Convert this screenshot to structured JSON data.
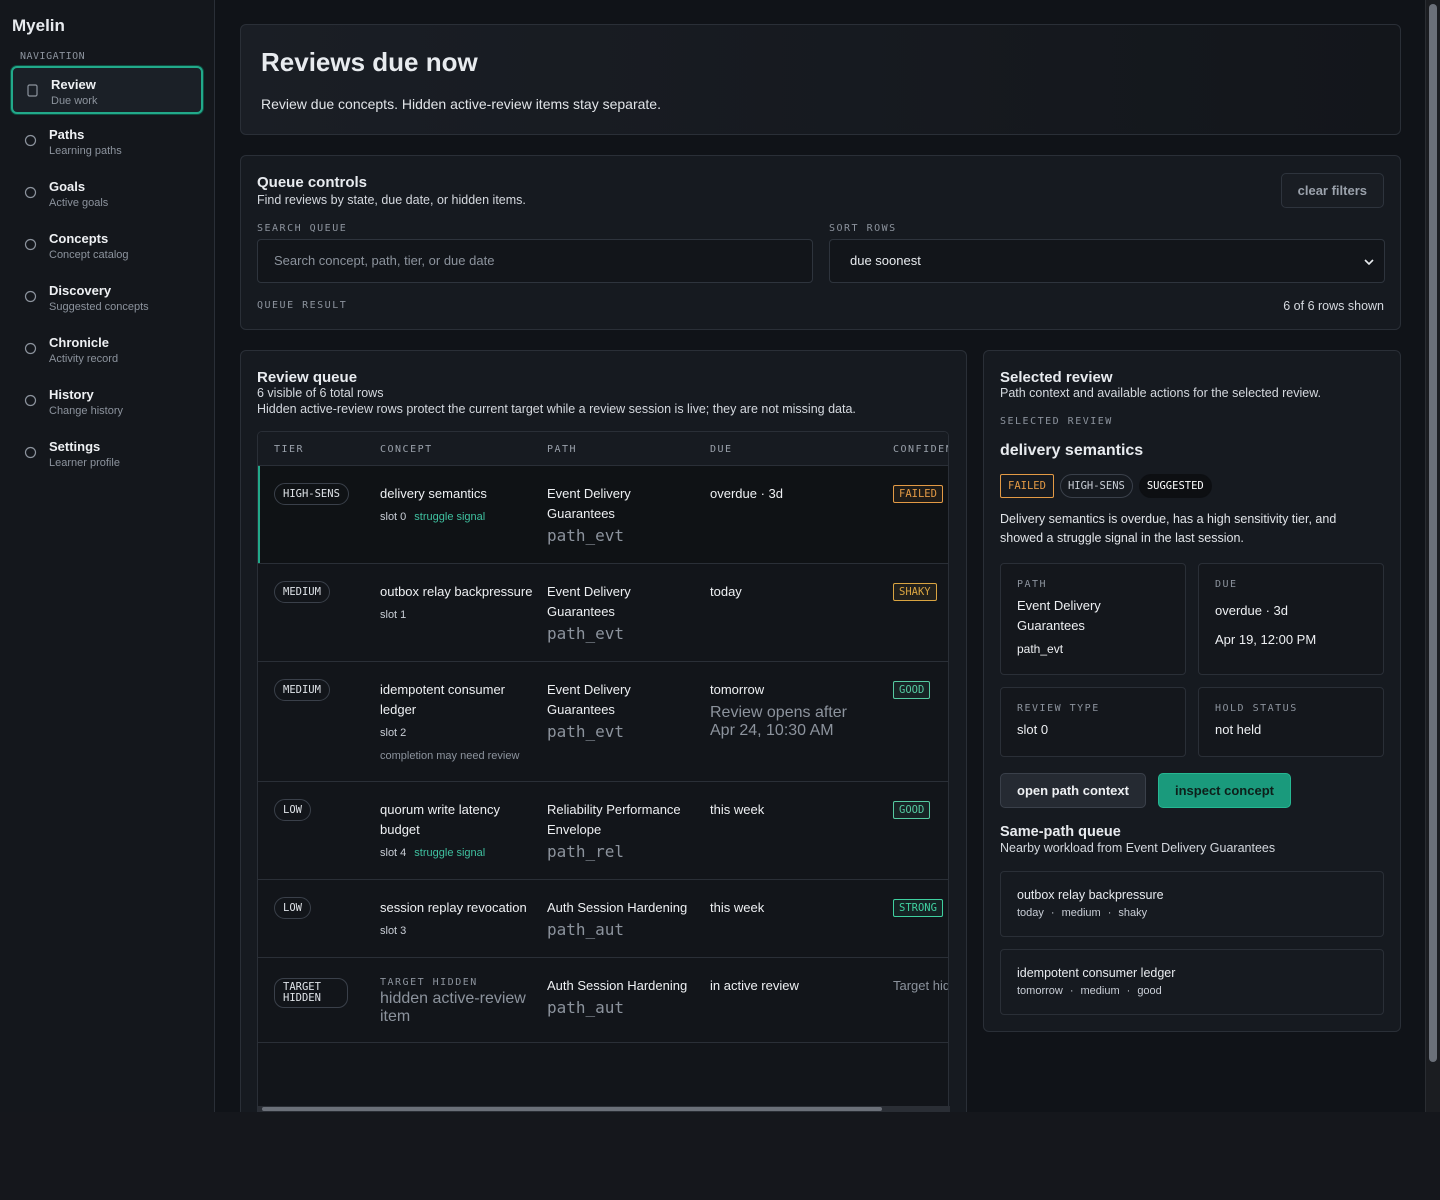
{
  "app": {
    "name": "Myelin"
  },
  "nav": {
    "heading": "NAVIGATION",
    "items": [
      {
        "label": "Review",
        "sub": "Due work"
      },
      {
        "label": "Paths",
        "sub": "Learning paths"
      },
      {
        "label": "Goals",
        "sub": "Active goals"
      },
      {
        "label": "Concepts",
        "sub": "Concept catalog"
      },
      {
        "label": "Discovery",
        "sub": "Suggested concepts"
      },
      {
        "label": "Chronicle",
        "sub": "Activity record"
      },
      {
        "label": "History",
        "sub": "Change history"
      },
      {
        "label": "Settings",
        "sub": "Learner profile"
      }
    ]
  },
  "header": {
    "title": "Reviews due now",
    "description": "Review due concepts. Hidden active-review items stay separate."
  },
  "controls": {
    "title": "Queue controls",
    "description": "Find reviews by state, due date, or hidden items.",
    "clear": "clear filters",
    "search_label": "SEARCH QUEUE",
    "search_placeholder": "Search concept, path, tier, or due date",
    "sort_label": "SORT ROWS",
    "sort_value": "due soonest",
    "result_label": "QUEUE RESULT",
    "result_text": "6 of 6 rows shown"
  },
  "queue": {
    "title": "Review queue",
    "count": "6 visible of 6 total rows",
    "note": "Hidden active-review rows protect the current target while a review session is live; they are not missing data.",
    "columns": [
      "TIER",
      "CONCEPT",
      "PATH",
      "DUE",
      "CONFIDENCE"
    ],
    "rows": [
      {
        "tier": "HIGH-SENS",
        "concept": "delivery semantics",
        "slot": "slot 0",
        "signal": "struggle signal",
        "path": "Event Delivery Guarantees",
        "path_id": "path_evt",
        "due": "overdue · 3d",
        "confidence": "FAILED",
        "confidence_color": "#e39a45"
      },
      {
        "tier": "MEDIUM",
        "concept": "outbox relay backpressure",
        "slot": "slot 1",
        "path": "Event Delivery Guarantees",
        "path_id": "path_evt",
        "due": "today",
        "confidence": "SHAKY",
        "confidence_color": "#d9a441"
      },
      {
        "tier": "MEDIUM",
        "concept": "idempotent consumer ledger",
        "slot": "slot 2",
        "note": "completion may need review",
        "path": "Event Delivery Guarantees",
        "path_id": "path_evt",
        "due": "tomorrow",
        "due_note": "Review opens after Apr 24, 10:30 AM",
        "confidence": "GOOD",
        "confidence_color": "#55c9a0"
      },
      {
        "tier": "LOW",
        "concept": "quorum write latency budget",
        "slot": "slot 4",
        "signal": "struggle signal",
        "path": "Reliability Performance Envelope",
        "path_id": "path_rel",
        "due": "this week",
        "confidence": "GOOD",
        "confidence_color": "#55c9a0"
      },
      {
        "tier": "LOW",
        "concept": "session replay revocation",
        "slot": "slot 3",
        "path": "Auth Session Hardening",
        "path_id": "path_aut",
        "due": "this week",
        "confidence": "STRONG",
        "confidence_color": "#3fd0a0"
      },
      {
        "tier": "TARGET HIDDEN",
        "hidden_label": "TARGET HIDDEN",
        "concept": "hidden active-review item",
        "path": "Auth Session Hardening",
        "path_id": "path_aut",
        "due": "in active review",
        "confidence": "Target hidden",
        "confidence_color": "#8b929c"
      }
    ]
  },
  "selected": {
    "title": "Selected review",
    "description": "Path context and available actions for the selected review.",
    "label": "SELECTED REVIEW",
    "concept": "delivery semantics",
    "badges": [
      {
        "text": "FAILED",
        "color": "#e39a45"
      },
      {
        "text": "HIGH-SENS",
        "color": "#c9ced6"
      },
      {
        "text": "SUGGESTED",
        "color": "#ffffff"
      }
    ],
    "summary": "Delivery semantics is overdue, has a high sensitivity tier, and showed a struggle signal in the last session.",
    "cards": [
      {
        "label": "PATH",
        "lines": [
          "Event Delivery Guarantees",
          "path_evt"
        ]
      },
      {
        "label": "DUE",
        "lines": [
          "overdue · 3d",
          "Apr 19, 12:00 PM"
        ]
      },
      {
        "label": "REVIEW TYPE",
        "lines": [
          "slot 0"
        ]
      },
      {
        "label": "HOLD STATUS",
        "lines": [
          "not held"
        ]
      }
    ],
    "actions": [
      "open path context",
      "inspect concept"
    ],
    "same_path": {
      "title": "Same-path queue",
      "description": "Nearby workload from Event Delivery Guarantees",
      "items": [
        {
          "name": "outbox relay backpressure",
          "meta": [
            "today",
            "medium",
            "shaky"
          ]
        },
        {
          "name": "idempotent consumer ledger",
          "meta": [
            "tomorrow",
            "medium",
            "good"
          ]
        }
      ]
    }
  }
}
